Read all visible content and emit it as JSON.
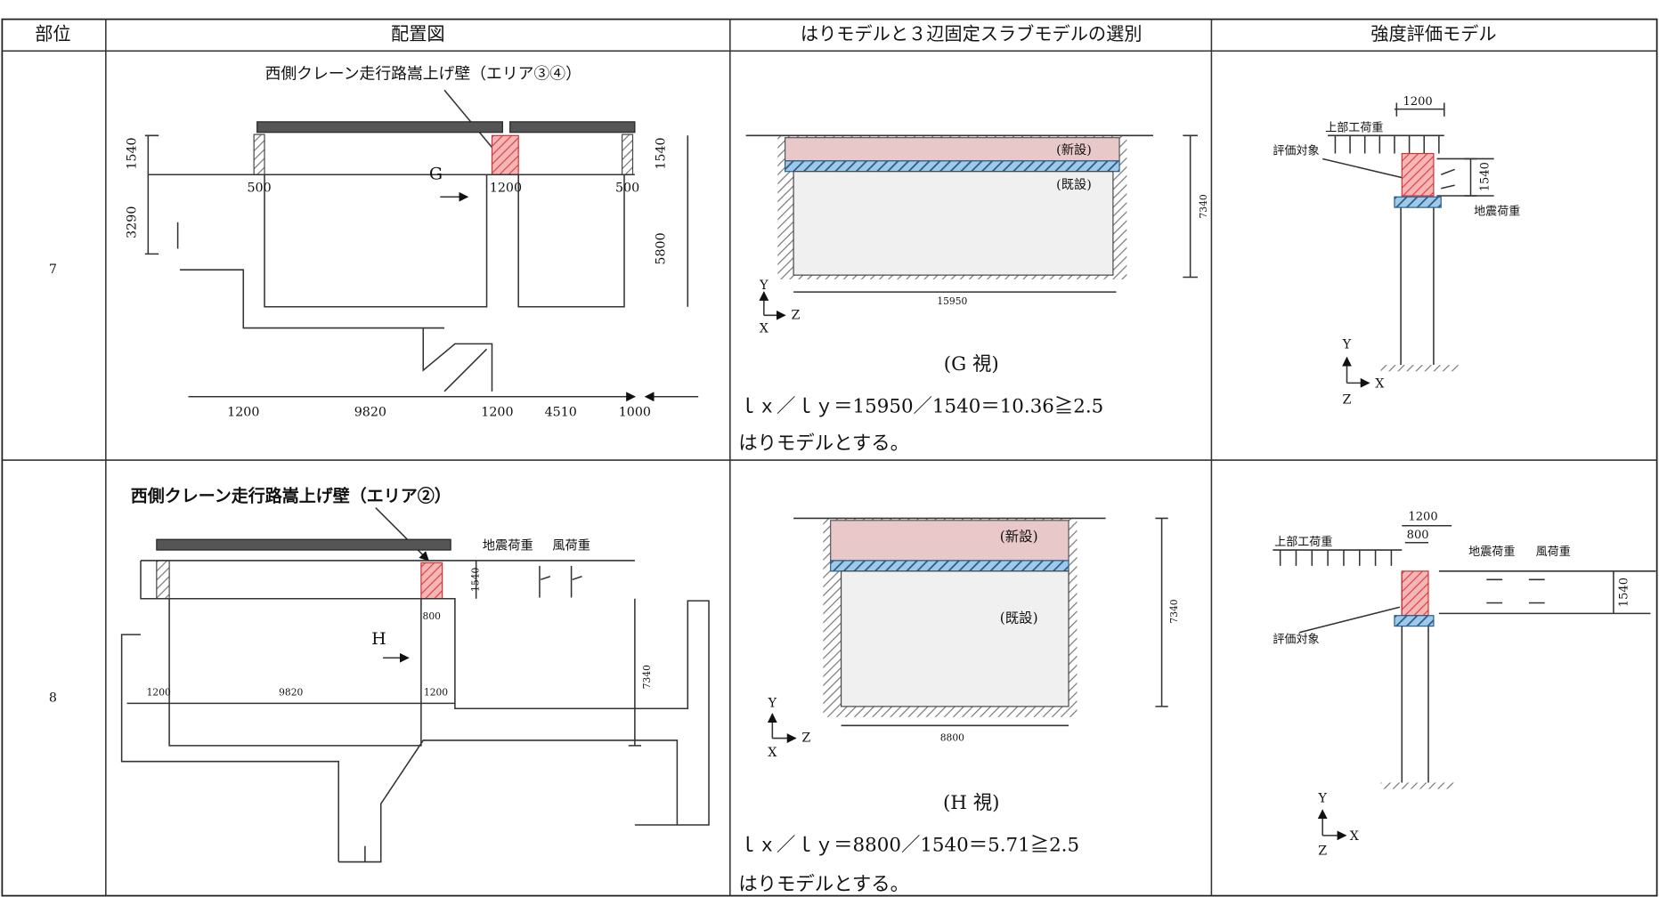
{
  "table": {
    "headers": [
      "部位",
      "配置図",
      "はりモデルと３辺固定スラブモデルの選別",
      "強度評価モデル"
    ],
    "rows": [
      {
        "part": "7",
        "layout": {
          "title": "西側クレーン走行路嵩上げ壁（エリア③④）",
          "view": "G",
          "dims": [
            "1540",
            "3290",
            "500",
            "1200",
            "500",
            "1540",
            "5800",
            "1200",
            "9820",
            "1200",
            "4510",
            "1000"
          ]
        },
        "selection": {
          "new": "(新設)",
          "existing": "(既設)",
          "dims": [
            "7340",
            "15950"
          ],
          "axes": [
            "Y",
            "Z",
            "X"
          ],
          "view": "(G 視)",
          "formula": "ｌｘ／ｌｙ＝15950／1540＝10.36≧2.5",
          "conclusion": "はりモデルとする。"
        },
        "strength": {
          "dims": [
            "1200",
            "1540"
          ],
          "labels": [
            "上部工荷重",
            "評価対象",
            "地震荷重"
          ],
          "axes": [
            "Y",
            "X",
            "Z"
          ]
        }
      },
      {
        "part": "8",
        "layout": {
          "title": "西側クレーン走行路嵩上げ壁（エリア②）",
          "view": "H",
          "loads": [
            "地震荷重",
            "風荷重"
          ],
          "dims": [
            "1540",
            "800",
            "7340",
            "1200",
            "9820",
            "1200"
          ]
        },
        "selection": {
          "new": "(新設)",
          "existing": "(既設)",
          "dims": [
            "7340",
            "8800"
          ],
          "axes": [
            "Y",
            "Z",
            "X"
          ],
          "view": "(H 視)",
          "formula": "ｌｘ／ｌｙ＝8800／1540＝5.71≧2.5",
          "conclusion": "はりモデルとする。"
        },
        "strength": {
          "dims": [
            "1200",
            "800",
            "1540"
          ],
          "labels": [
            "上部工荷重",
            "地震荷重",
            "風荷重",
            "評価対象"
          ],
          "axes": [
            "Y",
            "X",
            "Z"
          ]
        }
      }
    ]
  }
}
